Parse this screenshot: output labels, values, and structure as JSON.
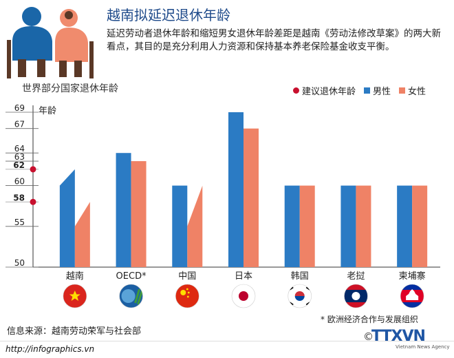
{
  "header": {
    "title": "越南拟延迟退休年龄",
    "subtitle": "延迟劳动者退休年龄和缩短男女退休年龄差距是越南《劳动法修改草案》的两大新看点，其目的是充分利用人力资源和保持基本养老保险基金收支平衡。"
  },
  "section_label": "世界部分国家退休年龄",
  "legend": {
    "proposed": "建议退休年龄",
    "male": "男性",
    "female": "女性"
  },
  "colors": {
    "male": "#2b7bc4",
    "female": "#ef8266",
    "proposed": "#c8102e",
    "title": "#1e4a8a"
  },
  "chart_data": {
    "type": "bar",
    "y_unit_label": "年龄",
    "ylim": [
      50,
      69
    ],
    "y_ticks": [
      50,
      55,
      58,
      60,
      62,
      63,
      64,
      67,
      69
    ],
    "highlight_ticks": [
      58,
      62
    ],
    "categories": [
      "越南",
      "OECD*",
      "中国",
      "日本",
      "韩国",
      "老挝",
      "柬埔寨"
    ],
    "series": [
      {
        "name": "男性",
        "values": [
          60,
          64,
          60,
          69,
          60,
          60,
          60
        ],
        "proposed": [
          62,
          null,
          null,
          null,
          null,
          null,
          null
        ]
      },
      {
        "name": "女性",
        "values": [
          55,
          63,
          55,
          67,
          60,
          60,
          60
        ],
        "proposed": [
          58,
          null,
          60,
          null,
          null,
          null,
          null
        ]
      }
    ],
    "flags": [
      "vietnam-flag-icon",
      "oecd-logo-icon",
      "china-flag-icon",
      "japan-flag-icon",
      "korea-flag-icon",
      "laos-flag-icon",
      "cambodia-flag-icon"
    ]
  },
  "footer": {
    "source": "信息来源：越南劳动荣军与社会部",
    "footnote": "* 欧洲经济合作与发展组织",
    "url": "http://infographics.vn",
    "logo": "TTXVN",
    "logo_sub": "Vietnam News Agency",
    "copyright_symbol": "©"
  }
}
